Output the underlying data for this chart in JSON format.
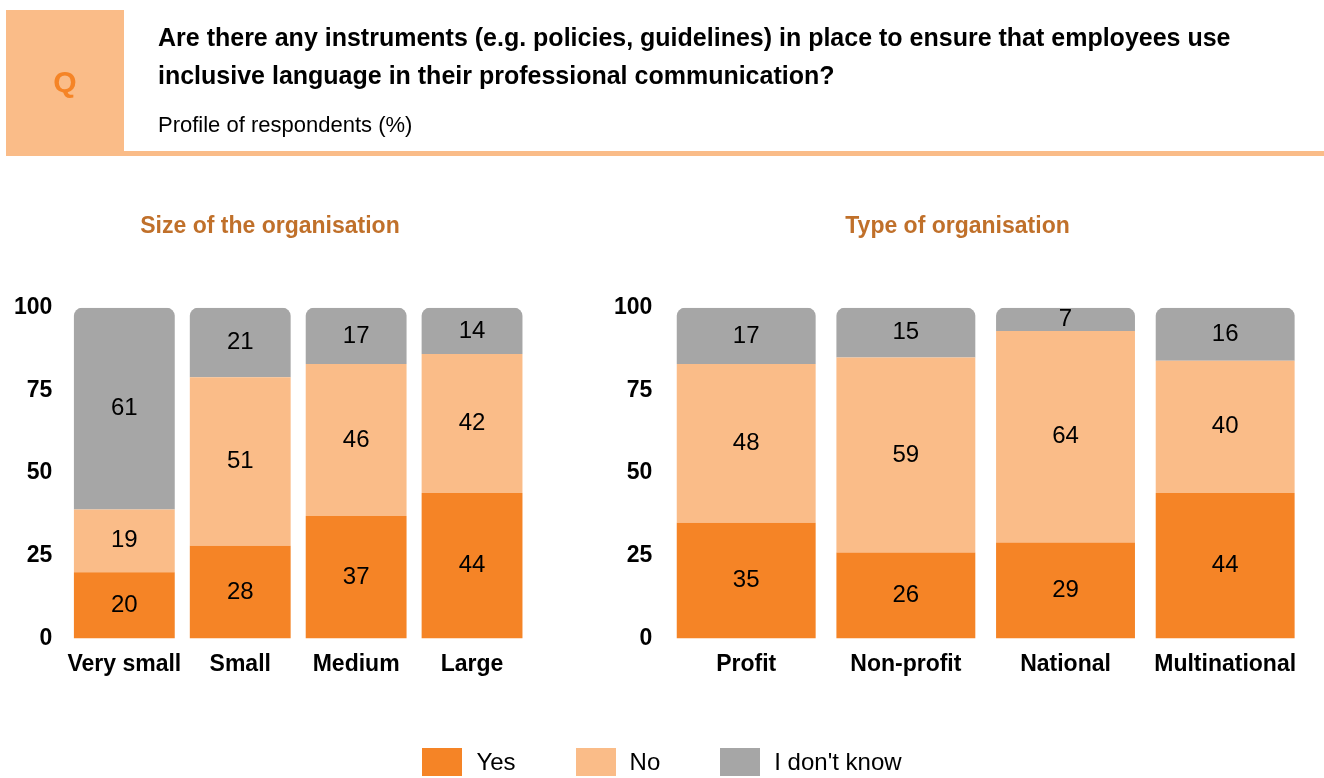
{
  "chart_data": [
    {
      "type": "bar",
      "title": "Size of the organisation",
      "annotations": [
        "Q",
        "Are there any instruments (e.g. policies, guidelines) in place to ensure that employees use inclusive language in their professional communication?",
        "Profile of respondents (%)"
      ],
      "categories": [
        "Very small",
        "Small",
        "Medium",
        "Large"
      ],
      "stacked": true,
      "data_labels": true,
      "legend": "bottom",
      "ylim": [
        0,
        100
      ],
      "yticks": [
        0,
        25,
        50,
        75,
        100
      ],
      "series": [
        {
          "name": "Yes",
          "color": "#f58426",
          "values": [
            20,
            28,
            37,
            44
          ]
        },
        {
          "name": "No",
          "color": "#fabc88",
          "values": [
            19,
            51,
            46,
            42
          ]
        },
        {
          "name": "I don't know",
          "color": "#a6a6a6",
          "values": [
            61,
            21,
            17,
            14
          ]
        }
      ]
    },
    {
      "type": "bar",
      "title": "Type of organisation",
      "categories": [
        "Profit",
        "Non-profit",
        "National",
        "Multinational"
      ],
      "stacked": true,
      "data_labels": true,
      "ylim": [
        0,
        100
      ],
      "yticks": [
        0,
        25,
        50,
        75,
        100
      ],
      "series": [
        {
          "color": "#f58426",
          "values": [
            35,
            26,
            29,
            44
          ]
        },
        {
          "color": "#fabc88",
          "values": [
            48,
            59,
            64,
            40
          ]
        },
        {
          "color": "#a6a6a6",
          "values": [
            17,
            15,
            7,
            16
          ]
        }
      ]
    }
  ]
}
